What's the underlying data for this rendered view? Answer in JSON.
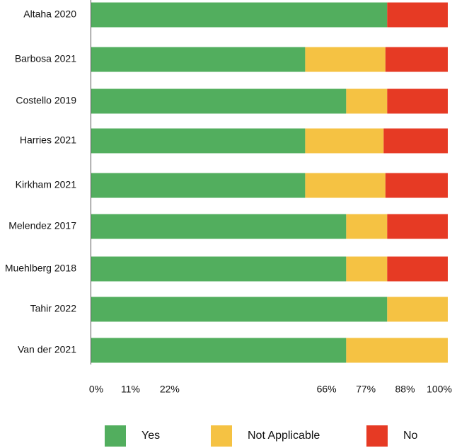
{
  "chart_data": {
    "type": "bar",
    "orientation": "horizontal",
    "stacked": true,
    "categories": [
      "Altaha 2020",
      "Barbosa 2021",
      "Costello 2019",
      "Harries 2021",
      "Kirkham 2021",
      "Melendez 2017",
      "Muehlberg 2018",
      "Tahir 2022",
      "Van der 2021"
    ],
    "series": [
      {
        "name": "Yes",
        "color": "#52ae5e",
        "values": [
          83.0,
          60.0,
          71.5,
          60.0,
          60.0,
          71.5,
          71.5,
          83.0,
          71.5
        ]
      },
      {
        "name": "Not Applicable",
        "color": "#f5c243",
        "values": [
          0.0,
          22.5,
          11.5,
          22.0,
          22.5,
          11.5,
          11.5,
          17.0,
          28.5
        ]
      },
      {
        "name": "No",
        "color": "#e63a24",
        "values": [
          17.0,
          17.5,
          17.0,
          18.0,
          17.5,
          17.0,
          17.0,
          0.0,
          0.0
        ]
      }
    ],
    "xaxis": {
      "ticks": [
        0,
        11,
        22,
        66,
        77,
        88,
        100
      ],
      "tick_labels": [
        "0%",
        "11%",
        "22%",
        "66%",
        "77%",
        "88%",
        "100%"
      ],
      "xlim": [
        0,
        100
      ]
    },
    "grid": false,
    "legend_position": "bottom"
  }
}
